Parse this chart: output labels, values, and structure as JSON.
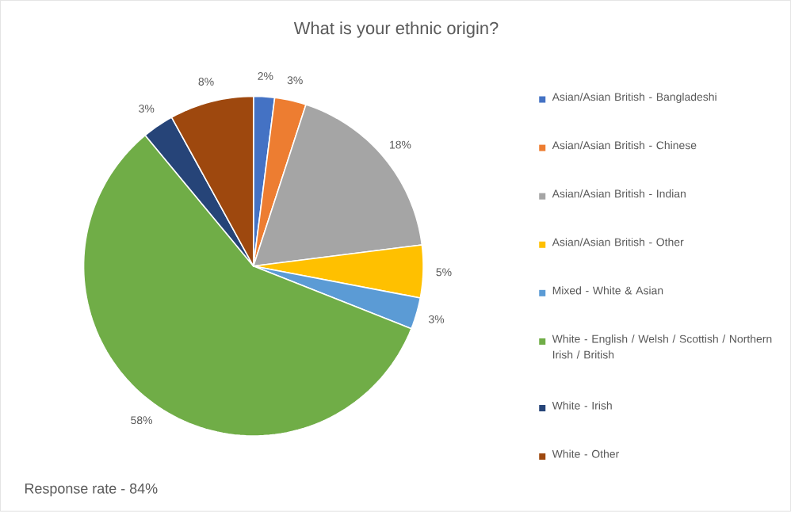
{
  "chart_data": {
    "type": "pie",
    "title": "What is your ethnic origin?",
    "categories": [
      "Asian/Asian British - Bangladeshi",
      "Asian/Asian British - Chinese",
      "Asian/Asian British - Indian",
      "Asian/Asian British - Other",
      "Mixed - White & Asian",
      "White - English / Welsh / Scottish / Northern Irish / British",
      "White - Irish",
      "White - Other"
    ],
    "values": [
      2,
      3,
      18,
      5,
      3,
      58,
      3,
      8
    ],
    "value_labels": [
      "2%",
      "3%",
      "18%",
      "5%",
      "3%",
      "58%",
      "3%",
      "8%"
    ],
    "colors": [
      "#4472c4",
      "#ed7d31",
      "#a5a5a5",
      "#ffc000",
      "#5b9bd5",
      "#70ad47",
      "#264478",
      "#9e480e"
    ],
    "legend": "right",
    "annotations": [
      "Response rate - 84%"
    ]
  }
}
